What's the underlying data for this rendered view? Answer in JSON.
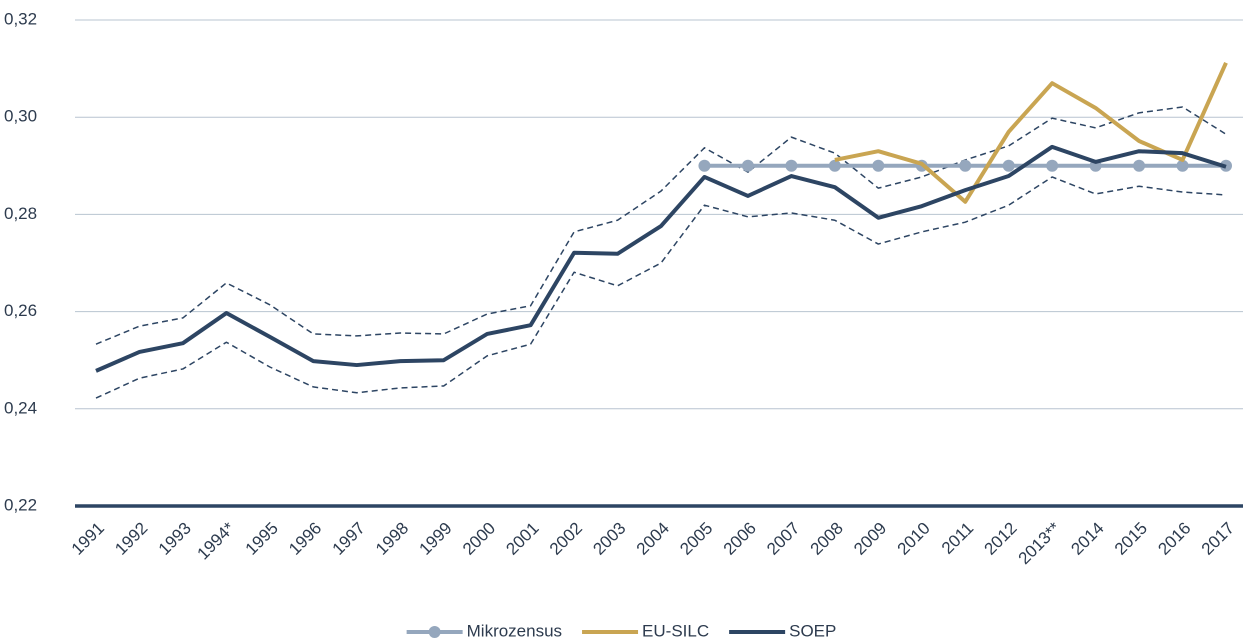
{
  "chart_data": {
    "type": "line",
    "categories": [
      "1991",
      "1992",
      "1993",
      "1994*",
      "1995",
      "1996",
      "1997",
      "1998",
      "1999",
      "2000",
      "2001",
      "2002",
      "2003",
      "2004",
      "2005",
      "2006",
      "2007",
      "2008",
      "2009",
      "2010",
      "2011",
      "2012",
      "2013**",
      "2014",
      "2015",
      "2016",
      "2017"
    ],
    "ylim": [
      0.22,
      0.32
    ],
    "yticks": [
      {
        "value": 0.22,
        "label": "0,22"
      },
      {
        "value": 0.24,
        "label": "0,24"
      },
      {
        "value": 0.26,
        "label": "0,26"
      },
      {
        "value": 0.28,
        "label": "0,28"
      },
      {
        "value": 0.3,
        "label": "0,30"
      },
      {
        "value": 0.32,
        "label": "0,32"
      }
    ],
    "grid": true,
    "legend": "bottom",
    "series": [
      {
        "name": "Mikrozensus",
        "color": "#95a7bd",
        "marker": "circle",
        "values": [
          null,
          null,
          null,
          null,
          null,
          null,
          null,
          null,
          null,
          null,
          null,
          null,
          null,
          null,
          0.29,
          0.29,
          0.29,
          0.29,
          0.29,
          0.29,
          0.29,
          0.29,
          0.29,
          0.29,
          0.29,
          0.29,
          0.29
        ]
      },
      {
        "name": "EU-SILC",
        "color": "#c9a552",
        "values": [
          null,
          null,
          null,
          null,
          null,
          null,
          null,
          null,
          null,
          null,
          null,
          null,
          null,
          null,
          null,
          null,
          null,
          0.2912,
          0.293,
          0.2904,
          0.2826,
          0.297,
          0.307,
          0.3019,
          0.2951,
          0.2912,
          0.3112
        ]
      },
      {
        "name": "SOEP",
        "color": "#2d4563",
        "values": [
          0.2478,
          0.2517,
          0.2535,
          0.2597,
          0.2548,
          0.2498,
          0.249,
          0.2498,
          0.25,
          0.2554,
          0.2572,
          0.2721,
          0.2719,
          0.2776,
          0.2877,
          0.2838,
          0.2879,
          0.2856,
          0.2793,
          0.2817,
          0.285,
          0.2879,
          0.2939,
          0.2908,
          0.293,
          0.2926,
          0.2898
        ],
        "ci_upper": [
          0.2533,
          0.257,
          0.2587,
          0.2659,
          0.2614,
          0.2554,
          0.255,
          0.2556,
          0.2554,
          0.2595,
          0.2612,
          0.2764,
          0.2788,
          0.2848,
          0.2937,
          0.2887,
          0.2959,
          0.2926,
          0.2854,
          0.2877,
          0.2912,
          0.2941,
          0.2998,
          0.2978,
          0.3009,
          0.3021,
          0.2965
        ],
        "ci_lower": [
          0.2422,
          0.2463,
          0.2482,
          0.2537,
          0.2486,
          0.2445,
          0.2433,
          0.2443,
          0.2447,
          0.2509,
          0.2533,
          0.2681,
          0.2653,
          0.27,
          0.2819,
          0.2795,
          0.2803,
          0.2788,
          0.2739,
          0.2764,
          0.2784,
          0.2819,
          0.2877,
          0.2842,
          0.2858,
          0.2846,
          0.284
        ]
      }
    ]
  }
}
